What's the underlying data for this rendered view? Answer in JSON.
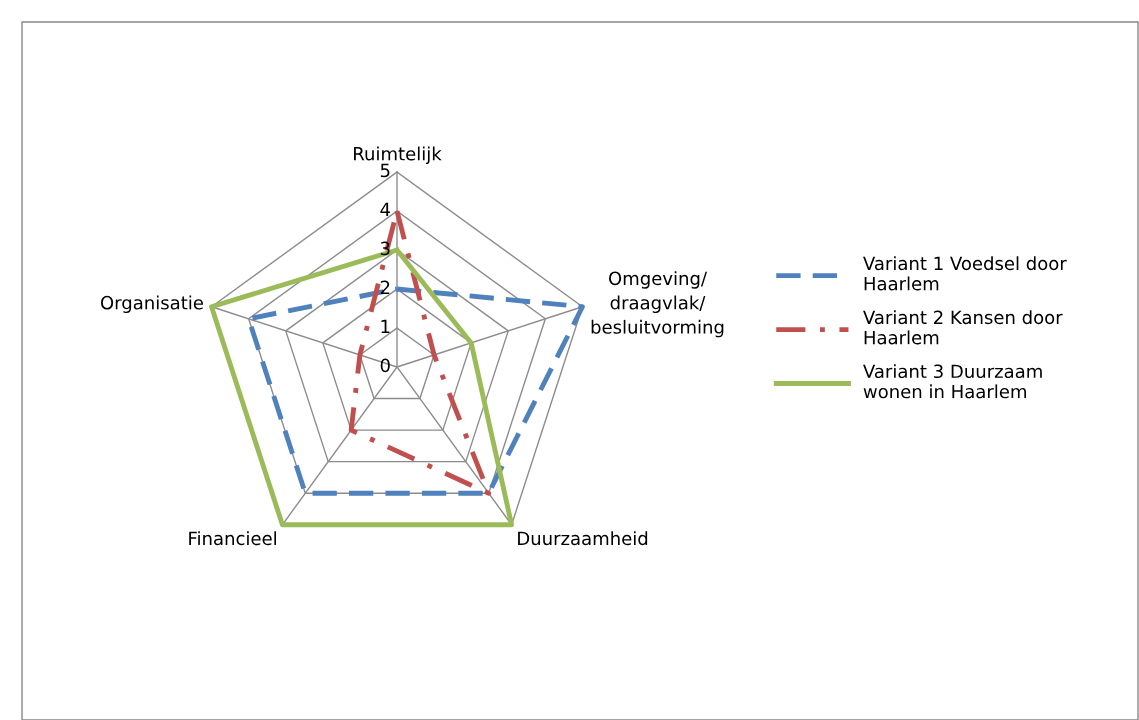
{
  "chart_data": {
    "type": "radar",
    "categories": [
      "Ruimtelijk",
      "Omgeving/ draagvlak/ besluitvorming",
      "Duurzaamheid",
      "Financieel",
      "Organisatie"
    ],
    "ylim": [
      0,
      5
    ],
    "yticks": [
      0,
      1,
      2,
      3,
      4,
      5
    ],
    "grid": true,
    "legend": "right",
    "marker": "none",
    "series": [
      {
        "name": "Variant 1 Voedsel door Haarlem",
        "color": "#4f81bd",
        "line_style": "dashed",
        "values": [
          2,
          5,
          4,
          4,
          4
        ]
      },
      {
        "name": "Variant 2 Kansen door Haarlem",
        "color": "#c0504d",
        "line_style": "dashdot",
        "values": [
          4,
          1,
          4,
          2,
          1
        ]
      },
      {
        "name": "Variant 3 Duurzaam wonen in Haarlem",
        "color": "#9bbb59",
        "line_style": "solid",
        "values": [
          3,
          2,
          5,
          5,
          5
        ]
      }
    ]
  }
}
